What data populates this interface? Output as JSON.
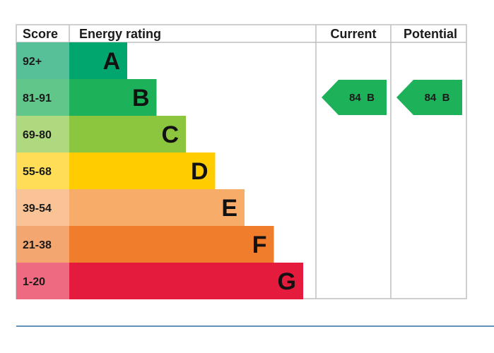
{
  "chart_data": {
    "type": "table",
    "headers": {
      "score": "Score",
      "rating": "Energy rating",
      "current": "Current",
      "potential": "Potential"
    },
    "bands": [
      {
        "range": "92+",
        "letter": "A",
        "color": "#00a66e",
        "score_bg": "#57c099"
      },
      {
        "range": "81-91",
        "letter": "B",
        "color": "#1db15a",
        "score_bg": "#61c68a"
      },
      {
        "range": "69-80",
        "letter": "C",
        "color": "#8cc63f",
        "score_bg": "#afd97e"
      },
      {
        "range": "55-68",
        "letter": "D",
        "color": "#ffcc00",
        "score_bg": "#ffdd57"
      },
      {
        "range": "39-54",
        "letter": "E",
        "color": "#f7ac6a",
        "score_bg": "#f9c395"
      },
      {
        "range": "21-38",
        "letter": "F",
        "color": "#ef7d2c",
        "score_bg": "#f4a671"
      },
      {
        "range": "1-20",
        "letter": "G",
        "color": "#e41b3c",
        "score_bg": "#ed6a80"
      }
    ],
    "current": {
      "value": 84,
      "band": "B",
      "label": "84  B",
      "color": "#1db15a"
    },
    "potential": {
      "value": 84,
      "band": "B",
      "label": "84  B",
      "color": "#1db15a"
    }
  },
  "colors": {
    "border": "#bfbfbf",
    "divider": "#2e6f9e"
  }
}
